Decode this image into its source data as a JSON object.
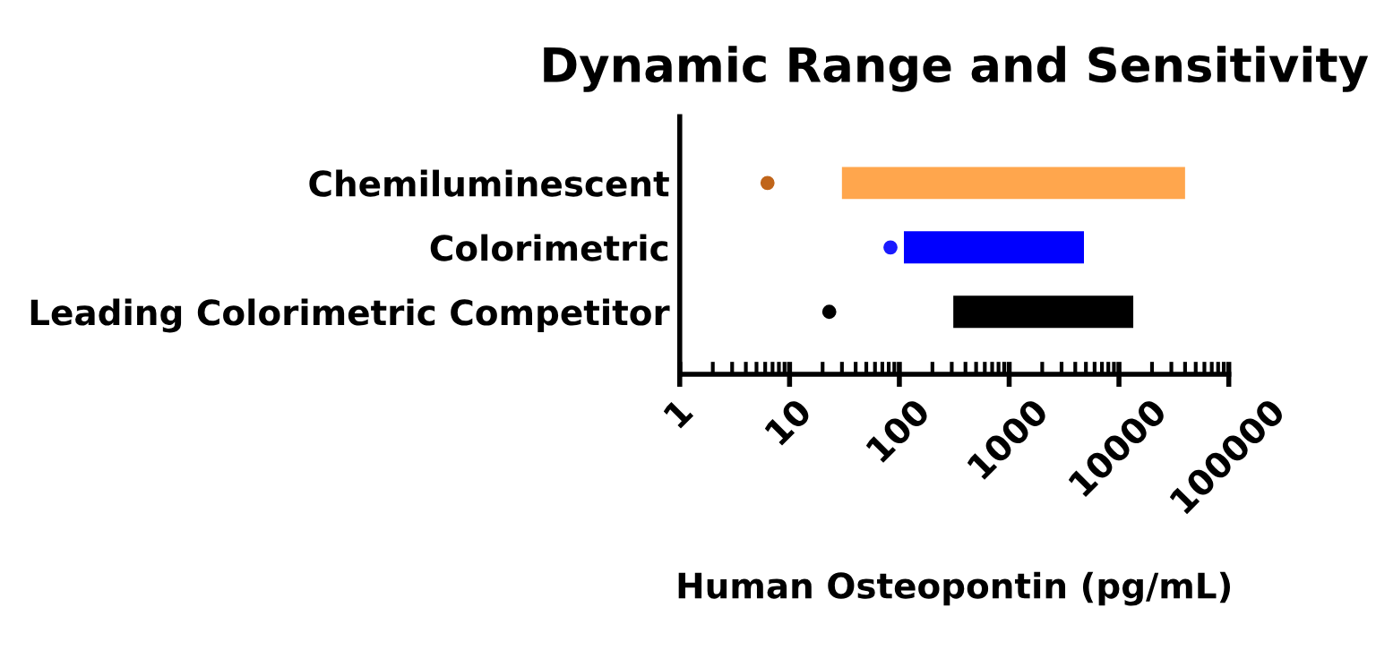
{
  "chart_data": {
    "type": "bar",
    "orientation": "horizontal",
    "title": "Dynamic Range and Sensitivity",
    "xlabel": "Human Osteopontin (pg/mL)",
    "categories": [
      "Chemiluminescent",
      "Colorimetric",
      "Leading Colorimetric Competitor"
    ],
    "base": [
      30,
      110,
      310
    ],
    "values": [
      39970,
      4690,
      13190
    ],
    "colors": [
      "#ffa64d",
      "#0000ff",
      "#000000"
    ],
    "series": [
      {
        "type": "scatter",
        "x": [
          "Chemiluminescent",
          "Colorimetric",
          "Leading Colorimetric Competitor"
        ],
        "values": [
          6.3,
          83,
          23
        ],
        "colors": [
          "#c0651a",
          "#1a1aff",
          "#000000"
        ]
      }
    ],
    "log": "x",
    "xlim": [
      1,
      100000
    ],
    "xticks": [
      1,
      10,
      100,
      1000,
      10000,
      100000
    ],
    "grid": false,
    "legend": false
  }
}
